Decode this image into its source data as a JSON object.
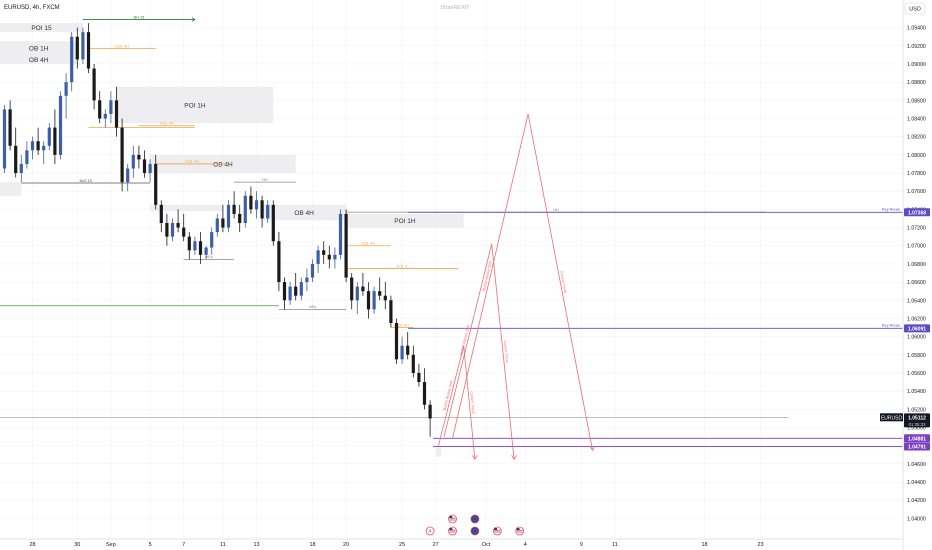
{
  "header": {
    "symbol": "EURUSD, 4h, FXCM",
    "author": "DhanREXIT",
    "currency": "USD"
  },
  "chart_data": {
    "type": "candlestick",
    "ylim": [
      1.0385,
      1.0955
    ],
    "y_ticks": [
      {
        "v": 1.094,
        "label": "1.09400"
      },
      {
        "v": 1.092,
        "label": "1.09200"
      },
      {
        "v": 1.09,
        "label": "1.09000"
      },
      {
        "v": 1.088,
        "label": "1.08800"
      },
      {
        "v": 1.086,
        "label": "1.08600"
      },
      {
        "v": 1.084,
        "label": "1.08400"
      },
      {
        "v": 1.082,
        "label": "1.08200"
      },
      {
        "v": 1.08,
        "label": "1.08000"
      },
      {
        "v": 1.078,
        "label": "1.07800"
      },
      {
        "v": 1.076,
        "label": "1.07600"
      },
      {
        "v": 1.074,
        "label": "1.07400"
      },
      {
        "v": 1.072,
        "label": "1.07200"
      },
      {
        "v": 1.07,
        "label": "1.07000"
      },
      {
        "v": 1.068,
        "label": "1.06800"
      },
      {
        "v": 1.066,
        "label": "1.06600"
      },
      {
        "v": 1.064,
        "label": "1.06400"
      },
      {
        "v": 1.062,
        "label": "1.06200"
      },
      {
        "v": 1.06,
        "label": "1.06000"
      },
      {
        "v": 1.058,
        "label": "1.05800"
      },
      {
        "v": 1.056,
        "label": "1.05600"
      },
      {
        "v": 1.054,
        "label": "1.05400"
      },
      {
        "v": 1.052,
        "label": "1.05200"
      },
      {
        "v": 1.05,
        "label": "1.05000"
      },
      {
        "v": 1.048,
        "label": "1.04800"
      },
      {
        "v": 1.046,
        "label": "1.04600"
      },
      {
        "v": 1.044,
        "label": "1.04400"
      },
      {
        "v": 1.042,
        "label": "1.04200"
      },
      {
        "v": 1.04,
        "label": "1.04000"
      }
    ],
    "x_labels": [
      {
        "label": "28",
        "bar": 5
      },
      {
        "label": "30",
        "bar": 13
      },
      {
        "label": "Sep",
        "bar": 19
      },
      {
        "label": "5",
        "bar": 26
      },
      {
        "label": "7",
        "bar": 32
      },
      {
        "label": "11",
        "bar": 39
      },
      {
        "label": "13",
        "bar": 45
      },
      {
        "label": "18",
        "bar": 55
      },
      {
        "label": "20",
        "bar": 61
      },
      {
        "label": "25",
        "bar": 71
      },
      {
        "label": "27",
        "bar": 77
      },
      {
        "label": "Oct",
        "bar": 86
      },
      {
        "label": "4",
        "bar": 93
      },
      {
        "label": "9",
        "bar": 103
      },
      {
        "label": "11",
        "bar": 109
      },
      {
        "label": "18",
        "bar": 125
      },
      {
        "label": "23",
        "bar": 135
      }
    ],
    "candles": [
      [
        1.0785,
        1.0855,
        1.078,
        1.085
      ],
      [
        1.085,
        1.086,
        1.0805,
        1.081
      ],
      [
        1.081,
        1.083,
        1.0775,
        1.078
      ],
      [
        1.078,
        1.08,
        1.077,
        1.079
      ],
      [
        1.079,
        1.0815,
        1.0785,
        1.0805
      ],
      [
        1.0805,
        1.082,
        1.0795,
        1.0815
      ],
      [
        1.0815,
        1.083,
        1.08,
        1.0805
      ],
      [
        1.0805,
        1.0815,
        1.079,
        1.081
      ],
      [
        1.081,
        1.0835,
        1.0805,
        1.083
      ],
      [
        1.083,
        1.085,
        1.079,
        1.08
      ],
      [
        1.08,
        1.087,
        1.0795,
        1.0865
      ],
      [
        1.0865,
        1.089,
        1.084,
        1.088
      ],
      [
        1.088,
        1.0935,
        1.087,
        1.093
      ],
      [
        1.093,
        1.094,
        1.0895,
        1.0905
      ],
      [
        1.0905,
        1.094,
        1.09,
        1.0935
      ],
      [
        1.0935,
        1.0945,
        1.089,
        1.0895
      ],
      [
        1.0895,
        1.09,
        1.085,
        1.086
      ],
      [
        1.086,
        1.087,
        1.0835,
        1.084
      ],
      [
        1.084,
        1.085,
        1.083,
        1.0845
      ],
      [
        1.0845,
        1.087,
        1.0835,
        1.086
      ],
      [
        1.086,
        1.0875,
        1.082,
        1.083
      ],
      [
        1.083,
        1.084,
        1.076,
        1.077
      ],
      [
        1.077,
        1.079,
        1.076,
        1.0785
      ],
      [
        1.0785,
        1.081,
        1.0775,
        1.08
      ],
      [
        1.08,
        1.081,
        1.0785,
        1.0795
      ],
      [
        1.0795,
        1.0805,
        1.0775,
        1.078
      ],
      [
        1.078,
        1.0795,
        1.077,
        1.079
      ],
      [
        1.079,
        1.08,
        1.074,
        1.0745
      ],
      [
        1.0745,
        1.075,
        1.0715,
        1.0725
      ],
      [
        1.0725,
        1.0735,
        1.07,
        1.071
      ],
      [
        1.071,
        1.073,
        1.0705,
        1.0725
      ],
      [
        1.0725,
        1.074,
        1.0715,
        1.072
      ],
      [
        1.072,
        1.0735,
        1.0705,
        1.071
      ],
      [
        1.071,
        1.0715,
        1.0685,
        1.0695
      ],
      [
        1.0695,
        1.071,
        1.069,
        1.0705
      ],
      [
        1.0705,
        1.0715,
        1.068,
        1.069
      ],
      [
        1.069,
        1.07,
        1.0685,
        1.0698
      ],
      [
        1.0698,
        1.072,
        1.069,
        1.0715
      ],
      [
        1.0715,
        1.0735,
        1.071,
        1.073
      ],
      [
        1.073,
        1.0745,
        1.0715,
        1.072
      ],
      [
        1.072,
        1.075,
        1.0715,
        1.0745
      ],
      [
        1.0745,
        1.076,
        1.073,
        1.0735
      ],
      [
        1.0735,
        1.0745,
        1.0715,
        1.0725
      ],
      [
        1.0725,
        1.076,
        1.072,
        1.0755
      ],
      [
        1.0755,
        1.0765,
        1.0735,
        1.074
      ],
      [
        1.074,
        1.076,
        1.073,
        1.075
      ],
      [
        1.075,
        1.0755,
        1.072,
        1.073
      ],
      [
        1.073,
        1.075,
        1.0725,
        1.0745
      ],
      [
        1.0745,
        1.075,
        1.07,
        1.0705
      ],
      [
        1.0705,
        1.0715,
        1.065,
        1.066
      ],
      [
        1.066,
        1.0665,
        1.063,
        1.064
      ],
      [
        1.064,
        1.066,
        1.0635,
        1.0655
      ],
      [
        1.0655,
        1.067,
        1.064,
        1.0645
      ],
      [
        1.0645,
        1.0665,
        1.064,
        1.066
      ],
      [
        1.066,
        1.0675,
        1.065,
        1.0665
      ],
      [
        1.0665,
        1.0685,
        1.066,
        1.068
      ],
      [
        1.068,
        1.07,
        1.067,
        1.0695
      ],
      [
        1.0695,
        1.0705,
        1.068,
        1.069
      ],
      [
        1.069,
        1.07,
        1.0675,
        1.0685
      ],
      [
        1.0685,
        1.0698,
        1.0675,
        1.069
      ],
      [
        1.069,
        1.074,
        1.0685,
        1.0735
      ],
      [
        1.0735,
        1.074,
        1.066,
        1.0665
      ],
      [
        1.0665,
        1.067,
        1.063,
        1.064
      ],
      [
        1.064,
        1.066,
        1.0625,
        1.0655
      ],
      [
        1.0655,
        1.067,
        1.0645,
        1.065
      ],
      [
        1.065,
        1.066,
        1.062,
        1.063
      ],
      [
        1.063,
        1.0655,
        1.0625,
        1.065
      ],
      [
        1.065,
        1.0665,
        1.064,
        1.0645
      ],
      [
        1.0645,
        1.066,
        1.063,
        1.064
      ],
      [
        1.064,
        1.0645,
        1.061,
        1.0615
      ],
      [
        1.0615,
        1.062,
        1.057,
        1.0575
      ],
      [
        1.0575,
        1.06,
        1.057,
        1.059
      ],
      [
        1.059,
        1.0605,
        1.0575,
        1.058
      ],
      [
        1.058,
        1.059,
        1.0555,
        1.056
      ],
      [
        1.056,
        1.057,
        1.0545,
        1.055
      ],
      [
        1.055,
        1.0565,
        1.052,
        1.0525
      ],
      [
        1.0525,
        1.053,
        1.049,
        1.051
      ]
    ],
    "zones": [
      {
        "label": "POI 15",
        "bar1": -2,
        "bar2": 14,
        "top": 1.0945,
        "bottom": 1.0935
      },
      {
        "label": "OB 1H",
        "bar1": -2,
        "bar2": 13,
        "top": 1.0925,
        "bottom": 1.091
      },
      {
        "label": "OB 4H",
        "bar1": -2,
        "bar2": 13,
        "top": 1.091,
        "bottom": 1.09
      },
      {
        "label": "POI 1H",
        "bar1": 20,
        "bar2": 48,
        "top": 1.0875,
        "bottom": 1.0835
      },
      {
        "label": "OB 4H",
        "bar1": 26,
        "bar2": 52,
        "top": 1.08,
        "bottom": 1.078
      },
      {
        "label": "",
        "bar1": -2,
        "bar2": 3,
        "top": 1.077,
        "bottom": 1.0755
      },
      {
        "label": "",
        "bar1": 26,
        "bar2": 39,
        "top": 1.0745,
        "bottom": 1.0738
      },
      {
        "label": "OB 4H",
        "bar1": 46,
        "bar2": 61,
        "top": 1.0745,
        "bottom": 1.0728
      },
      {
        "label": "POI 1H",
        "bar1": 61,
        "bar2": 82,
        "top": 1.0735,
        "bottom": 1.072
      },
      {
        "label": "",
        "bar1": 77,
        "bar2": 78,
        "top": 1.0478,
        "bottom": 1.0468
      }
    ],
    "key_levels": [
      {
        "label": "Key Areas",
        "value": 1.07368,
        "price": "1.07368",
        "color": "#5b4bc4"
      },
      {
        "label": "Key Areas",
        "value": 1.06091,
        "price": "1.06091",
        "color": "#5b4bc4"
      },
      {
        "label": "",
        "value": 1.04881,
        "price": "1.04881",
        "color": "#7b3fc0"
      },
      {
        "label": "",
        "value": 1.04791,
        "price": "1.04791",
        "color": "#7b3fc0"
      }
    ],
    "last_price": {
      "symbol": "EURUSD",
      "price": "1.05112",
      "countdown": "01:35:33",
      "value": 1.05112
    },
    "annotations": [
      {
        "type": "line",
        "bar1": 3,
        "bar2": 26,
        "y": 1.0769,
        "color": "#555555",
        "text": "BoS 15"
      },
      {
        "type": "line",
        "bar1": 14,
        "bar2": 34,
        "y": 1.0949,
        "color": "#2e7d32",
        "text": "BH 15",
        "arrow": true
      },
      {
        "type": "line",
        "bar1": 32,
        "bar2": 41,
        "y": 1.0685,
        "color": "#888888",
        "text": "mEs"
      },
      {
        "type": "line",
        "bar1": 49,
        "bar2": 61,
        "y": 1.063,
        "color": "#888888",
        "text": "mEs"
      },
      {
        "type": "line",
        "bar1": 41,
        "bar2": 52,
        "y": 1.077,
        "color": "#888888",
        "text": "HH"
      },
      {
        "type": "line",
        "bar1": 61,
        "bar2": 136,
        "y": 1.0737,
        "color": "#888888",
        "text": "HH"
      },
      {
        "type": "line",
        "bar1": -2,
        "bar2": 49,
        "y": 1.0634,
        "color": "#43a047",
        "text": ""
      },
      {
        "type": "line",
        "bar1": -2,
        "bar2": 140,
        "y": 1.0511,
        "color": "#aaaaaa",
        "text": ""
      },
      {
        "type": "line",
        "bar1": 15,
        "bar2": 27,
        "y": 1.0917,
        "color": "#f5a342",
        "text": "EQL 4H"
      },
      {
        "type": "line",
        "bar1": 24,
        "bar2": 34,
        "y": 1.0832,
        "color": "#f5a342",
        "text": "EQL 4H"
      },
      {
        "type": "line",
        "bar1": 15,
        "bar2": 34,
        "y": 1.083,
        "color": "#f5a342",
        "text": ""
      },
      {
        "type": "line",
        "bar1": 27,
        "bar2": 40,
        "y": 1.079,
        "color": "#f5a342",
        "text": "EQL 4H"
      },
      {
        "type": "line",
        "bar1": 61,
        "bar2": 69,
        "y": 1.07,
        "color": "#f5a342",
        "text": "EQL 4H"
      },
      {
        "type": "line",
        "bar1": 61,
        "bar2": 81,
        "y": 1.0675,
        "color": "#f5a342",
        "text": "EQL 4"
      },
      {
        "type": "line",
        "bar1": 69,
        "bar2": 73,
        "y": 1.061,
        "color": "#f5a342",
        "text": "EQL 4H"
      }
    ],
    "projections": [
      {
        "path": [
          [
            77.5,
            1.048
          ],
          [
            82,
            1.059
          ],
          [
            84,
            1.0465
          ]
        ],
        "up": "Bullish Market Shift",
        "down": "Current Trend"
      },
      {
        "path": [
          [
            78.5,
            1.049
          ],
          [
            87,
            1.0702
          ],
          [
            91,
            1.0465
          ]
        ],
        "up": "Bullish Market Shift",
        "down": "Current Trend"
      },
      {
        "path": [
          [
            80,
            1.0488
          ],
          [
            93.5,
            1.0845
          ],
          [
            105,
            1.0475
          ]
        ],
        "up": "Bullish Market Shift",
        "down": "Current Trend"
      }
    ],
    "event_icons": [
      {
        "bar": 76,
        "kind": "flash",
        "row": 1
      },
      {
        "bar": 80,
        "kind": "flag-us",
        "row": 0
      },
      {
        "bar": 80,
        "kind": "flag-us",
        "row": 1
      },
      {
        "bar": 84,
        "kind": "flag-eu",
        "row": 0
      },
      {
        "bar": 84,
        "kind": "flag-eu",
        "row": 1
      },
      {
        "bar": 88,
        "kind": "flag-us",
        "row": 1
      },
      {
        "bar": 92,
        "kind": "flag-us",
        "row": 1
      }
    ]
  }
}
